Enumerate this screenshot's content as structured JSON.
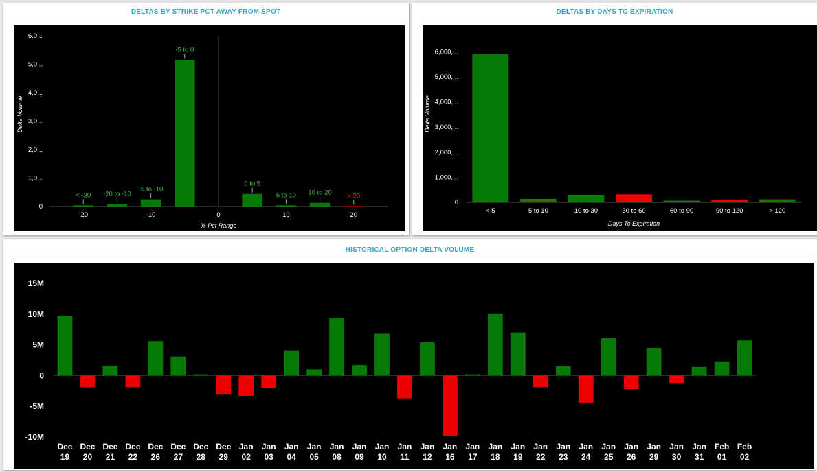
{
  "panels": {
    "strike": {
      "title": "DELTAS BY STRIKE PCT AWAY FROM SPOT"
    },
    "expiry": {
      "title": "DELTAS BY DAYS TO EXPIRATION"
    },
    "history": {
      "title": "HISTORICAL OPTION DELTA VOLUME"
    }
  },
  "colors": {
    "positive": "#087a08",
    "negative": "#ee0000",
    "background": "#000000",
    "title": "#3aa3c4"
  },
  "chart_data": [
    {
      "id": "strike",
      "type": "bar",
      "title": "DELTAS BY STRIKE PCT AWAY FROM SPOT",
      "xlabel": "% Pct Range",
      "ylabel": "Delta Volume",
      "xlim": [
        -25,
        25
      ],
      "ylim": [
        0,
        6000000
      ],
      "yticks": [
        0,
        1000000,
        2000000,
        3000000,
        4000000,
        5000000,
        6000000
      ],
      "ytick_labels": [
        "0",
        "1,0...",
        "2,0...",
        "3,0...",
        "4,0...",
        "5,0...",
        "6,0..."
      ],
      "xticks": [
        -20,
        -10,
        0,
        10,
        20
      ],
      "xtick_labels": [
        "-20",
        "-10",
        "0",
        "10",
        "20"
      ],
      "bars": [
        {
          "label": "< -20",
          "center": -20,
          "width": 3,
          "value": 40000,
          "positive": true
        },
        {
          "label": "-20 to -10",
          "center": -15,
          "width": 3,
          "value": 90000,
          "positive": true
        },
        {
          "label": "-5 to -10",
          "center": -10,
          "width": 3,
          "value": 250000,
          "positive": true
        },
        {
          "label": "-5 to 0",
          "center": -5,
          "width": 3,
          "value": 5150000,
          "positive": true
        },
        {
          "label": "0 to 5",
          "center": 5,
          "width": 3,
          "value": 440000,
          "positive": true
        },
        {
          "label": "5 to 10",
          "center": 10,
          "width": 3,
          "value": 40000,
          "positive": true
        },
        {
          "label": "10 to 20",
          "center": 15,
          "width": 3,
          "value": 130000,
          "positive": true
        },
        {
          "label": "> 20",
          "center": 20,
          "width": 3,
          "value": 15000,
          "positive": false
        }
      ],
      "grid": false
    },
    {
      "id": "expiry",
      "type": "bar",
      "title": "DELTAS BY DAYS TO EXPIRATION",
      "xlabel": "Days To Expiration",
      "ylabel": "Delta Volume",
      "ylim": [
        0,
        6500000
      ],
      "yticks": [
        0,
        1000000,
        2000000,
        3000000,
        4000000,
        5000000,
        6000000
      ],
      "ytick_labels": [
        "0",
        "1,000,...",
        "2,000,...",
        "3,000,...",
        "4,000,...",
        "5,000,...",
        "6,000,..."
      ],
      "categories": [
        "< 5",
        "5 to 10",
        "10 to 30",
        "30 to 60",
        "60 to 90",
        "90 to 120",
        "> 120"
      ],
      "values": [
        5900000,
        140000,
        300000,
        320000,
        70000,
        90000,
        120000
      ],
      "positive": [
        true,
        true,
        true,
        false,
        true,
        false,
        true
      ],
      "grid": false
    },
    {
      "id": "history",
      "type": "bar",
      "title": "HISTORICAL OPTION DELTA VOLUME",
      "xlabel": "",
      "ylabel": "",
      "ylim": [
        -10000000,
        15000000
      ],
      "yticks": [
        -10000000,
        -5000000,
        0,
        5000000,
        10000000,
        15000000
      ],
      "ytick_labels": [
        "-10M",
        "-5M",
        "0",
        "5M",
        "10M",
        "15M"
      ],
      "categories": [
        [
          "Dec",
          "19"
        ],
        [
          "Dec",
          "20"
        ],
        [
          "Dec",
          "21"
        ],
        [
          "Dec",
          "22"
        ],
        [
          "Dec",
          "26"
        ],
        [
          "Dec",
          "27"
        ],
        [
          "Dec",
          "28"
        ],
        [
          "Dec",
          "29"
        ],
        [
          "Jan",
          "02"
        ],
        [
          "Jan",
          "03"
        ],
        [
          "Jan",
          "04"
        ],
        [
          "Jan",
          "05"
        ],
        [
          "Jan",
          "08"
        ],
        [
          "Jan",
          "09"
        ],
        [
          "Jan",
          "10"
        ],
        [
          "Jan",
          "11"
        ],
        [
          "Jan",
          "12"
        ],
        [
          "Jan",
          "16"
        ],
        [
          "Jan",
          "17"
        ],
        [
          "Jan",
          "18"
        ],
        [
          "Jan",
          "19"
        ],
        [
          "Jan",
          "22"
        ],
        [
          "Jan",
          "23"
        ],
        [
          "Jan",
          "24"
        ],
        [
          "Jan",
          "25"
        ],
        [
          "Jan",
          "26"
        ],
        [
          "Jan",
          "29"
        ],
        [
          "Jan",
          "30"
        ],
        [
          "Jan",
          "31"
        ],
        [
          "Feb",
          "01"
        ],
        [
          "Feb",
          "02"
        ]
      ],
      "values": [
        9700000,
        -1900000,
        1600000,
        -1900000,
        5600000,
        3100000,
        200000,
        -3100000,
        -3300000,
        -2000000,
        4100000,
        1000000,
        9300000,
        1700000,
        6800000,
        -3700000,
        5400000,
        -9800000,
        200000,
        10100000,
        7000000,
        -1900000,
        1500000,
        -4400000,
        6100000,
        -2200000,
        4500000,
        -1200000,
        1400000,
        2300000,
        5700000
      ],
      "grid": false
    }
  ]
}
